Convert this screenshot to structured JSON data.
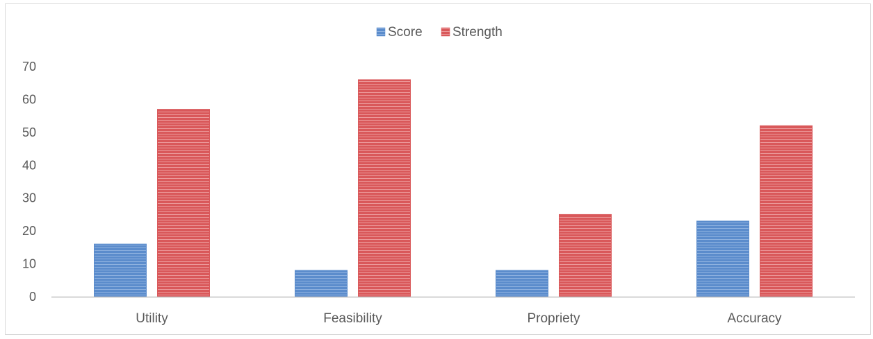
{
  "chart_data": {
    "type": "bar",
    "title": "",
    "xlabel": "",
    "ylabel": "",
    "categories": [
      "Utility",
      "Feasibility",
      "Propriety",
      "Accuracy"
    ],
    "series": [
      {
        "name": "Score",
        "values": [
          16,
          8,
          8,
          23
        ],
        "color": "#5b8ccc"
      },
      {
        "name": "Strength",
        "values": [
          57,
          66,
          25,
          52
        ],
        "color": "#d9585a"
      }
    ],
    "ylim": [
      0,
      70
    ],
    "yticks": [
      "0",
      "10",
      "20",
      "30",
      "40",
      "50",
      "60",
      "70"
    ],
    "grid": false,
    "legend_position": "top-center"
  }
}
